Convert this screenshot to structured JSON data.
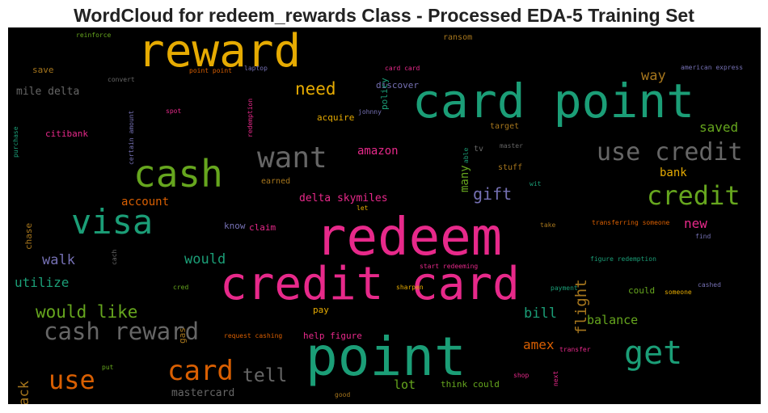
{
  "title": "WordCloud for redeem_rewards Class - Processed EDA-5 Training Set",
  "colors": {
    "green": "#1b9e77",
    "pink": "#e7298a",
    "orange": "#d95f02",
    "gold": "#e6ab02",
    "lime": "#66a61e",
    "purple": "#7570b3",
    "brown": "#a6761d",
    "gray": "#666666"
  },
  "words": [
    {
      "id": "redeem",
      "text": "redeem",
      "color": "pink"
    },
    {
      "id": "credit-card",
      "text": "credit card",
      "color": "pink"
    },
    {
      "id": "point",
      "text": "point",
      "color": "green"
    },
    {
      "id": "card-point",
      "text": "card point",
      "color": "green"
    },
    {
      "id": "reward",
      "text": "reward",
      "color": "gold"
    },
    {
      "id": "cash",
      "text": "cash",
      "color": "lime"
    },
    {
      "id": "visa",
      "text": "visa",
      "color": "green"
    },
    {
      "id": "want",
      "text": "want",
      "color": "gray"
    },
    {
      "id": "use-credit",
      "text": "use credit",
      "color": "gray"
    },
    {
      "id": "credit",
      "text": "credit",
      "color": "lime"
    },
    {
      "id": "get",
      "text": "get",
      "color": "green"
    },
    {
      "id": "card",
      "text": "card",
      "color": "orange"
    },
    {
      "id": "use",
      "text": "use",
      "color": "orange"
    },
    {
      "id": "cash-reward",
      "text": "cash reward",
      "color": "gray"
    },
    {
      "id": "would-like",
      "text": "would like",
      "color": "lime"
    },
    {
      "id": "tell",
      "text": "tell",
      "color": "gray"
    },
    {
      "id": "need",
      "text": "need",
      "color": "gold"
    },
    {
      "id": "gift",
      "text": "gift",
      "color": "purple"
    },
    {
      "id": "flight",
      "text": "flight",
      "color": "brown"
    },
    {
      "id": "walk",
      "text": "walk",
      "color": "purple"
    },
    {
      "id": "would",
      "text": "would",
      "color": "green"
    },
    {
      "id": "utilize",
      "text": "utilize",
      "color": "green"
    },
    {
      "id": "back",
      "text": "back",
      "color": "brown"
    },
    {
      "id": "saved",
      "text": "saved",
      "color": "lime"
    },
    {
      "id": "way",
      "text": "way",
      "color": "brown"
    },
    {
      "id": "amex",
      "text": "amex",
      "color": "orange"
    },
    {
      "id": "bill",
      "text": "bill",
      "color": "green"
    },
    {
      "id": "balance",
      "text": "balance",
      "color": "lime"
    },
    {
      "id": "new",
      "text": "new",
      "color": "pink"
    },
    {
      "id": "bank",
      "text": "bank",
      "color": "gold"
    },
    {
      "id": "amazon",
      "text": "amazon",
      "color": "pink"
    },
    {
      "id": "account",
      "text": "account",
      "color": "orange"
    },
    {
      "id": "delta-skymiles",
      "text": "delta skymiles",
      "color": "pink"
    },
    {
      "id": "many",
      "text": "many",
      "color": "lime"
    },
    {
      "id": "lot",
      "text": "lot",
      "color": "lime"
    },
    {
      "id": "mastercard",
      "text": "mastercard",
      "color": "gray"
    },
    {
      "id": "mile-delta",
      "text": "mile delta",
      "color": "gray"
    },
    {
      "id": "save",
      "text": "save",
      "color": "brown"
    },
    {
      "id": "citibank",
      "text": "citibank",
      "color": "pink"
    },
    {
      "id": "chase",
      "text": "chase",
      "color": "brown"
    },
    {
      "id": "gas",
      "text": "gas",
      "color": "brown"
    },
    {
      "id": "acquire",
      "text": "acquire",
      "color": "gold"
    },
    {
      "id": "discover",
      "text": "discover",
      "color": "purple"
    },
    {
      "id": "policy",
      "text": "policy",
      "color": "green"
    },
    {
      "id": "ransom",
      "text": "ransom",
      "color": "brown"
    },
    {
      "id": "earned",
      "text": "earned",
      "color": "brown"
    },
    {
      "id": "stuff",
      "text": "stuff",
      "color": "brown"
    },
    {
      "id": "target",
      "text": "target",
      "color": "brown"
    },
    {
      "id": "tv",
      "text": "tv",
      "color": "gray"
    },
    {
      "id": "help-figure",
      "text": "help figure",
      "color": "pink"
    },
    {
      "id": "think-could",
      "text": "think could",
      "color": "lime"
    },
    {
      "id": "pay",
      "text": "pay",
      "color": "gold"
    },
    {
      "id": "claim",
      "text": "claim",
      "color": "pink"
    },
    {
      "id": "know",
      "text": "know",
      "color": "purple"
    },
    {
      "id": "could",
      "text": "could",
      "color": "lime"
    },
    {
      "id": "reinforce",
      "text": "reinforce",
      "color": "lime"
    },
    {
      "id": "convert",
      "text": "convert",
      "color": "gray"
    },
    {
      "id": "point-point",
      "text": "point point",
      "color": "orange"
    },
    {
      "id": "laptop",
      "text": "laptop",
      "color": "purple"
    },
    {
      "id": "card-card",
      "text": "card card",
      "color": "pink"
    },
    {
      "id": "american-express",
      "text": "american express",
      "color": "purple"
    },
    {
      "id": "spot",
      "text": "spot",
      "color": "pink"
    },
    {
      "id": "johnny",
      "text": "johnny",
      "color": "purple"
    },
    {
      "id": "redemption",
      "text": "redemption",
      "color": "pink"
    },
    {
      "id": "certain-amount",
      "text": "certain amount",
      "color": "purple"
    },
    {
      "id": "purchase",
      "text": "purchase",
      "color": "green"
    },
    {
      "id": "master",
      "text": "master",
      "color": "gray"
    },
    {
      "id": "able",
      "text": "able",
      "color": "green"
    },
    {
      "id": "wit",
      "text": "wit",
      "color": "green"
    },
    {
      "id": "let",
      "text": "let",
      "color": "gold"
    },
    {
      "id": "take",
      "text": "take",
      "color": "brown"
    },
    {
      "id": "transferring-someone",
      "text": "transferring someone",
      "color": "orange"
    },
    {
      "id": "find",
      "text": "find",
      "color": "purple"
    },
    {
      "id": "figure-redemption",
      "text": "figure redemption",
      "color": "green"
    },
    {
      "id": "start-redeeming",
      "text": "start redeeming",
      "color": "pink"
    },
    {
      "id": "sharpen",
      "text": "sharpen",
      "color": "gold"
    },
    {
      "id": "cred",
      "text": "cred",
      "color": "lime"
    },
    {
      "id": "cach",
      "text": "cach",
      "color": "gray"
    },
    {
      "id": "payment",
      "text": "payment",
      "color": "green"
    },
    {
      "id": "someone",
      "text": "someone",
      "color": "gold"
    },
    {
      "id": "cashed",
      "text": "cashed",
      "color": "purple"
    },
    {
      "id": "request-cashing",
      "text": "request cashing",
      "color": "orange"
    },
    {
      "id": "transfer",
      "text": "transfer",
      "color": "pink"
    },
    {
      "id": "next",
      "text": "next",
      "color": "pink"
    },
    {
      "id": "shop",
      "text": "shop",
      "color": "pink"
    },
    {
      "id": "put",
      "text": "put",
      "color": "lime"
    },
    {
      "id": "good",
      "text": "good",
      "color": "brown"
    }
  ]
}
